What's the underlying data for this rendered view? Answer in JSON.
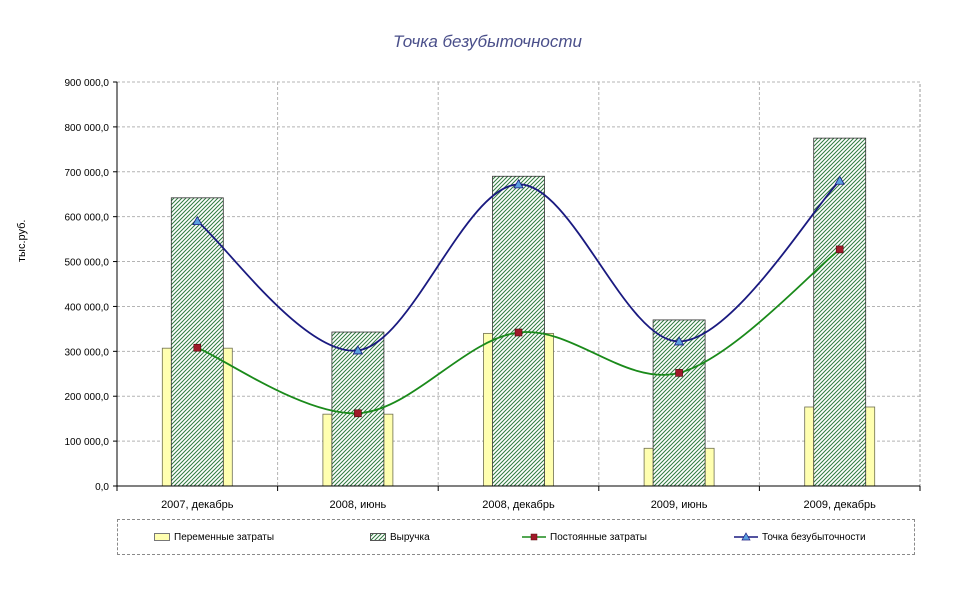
{
  "chart_data": {
    "type": "bar",
    "title": "Точка безубыточности",
    "xlabel": "",
    "ylabel": "тыс.руб.",
    "ylim": [
      0,
      900000
    ],
    "yticks": [
      "0,0",
      "100 000,0",
      "200 000,0",
      "300 000,0",
      "400 000,0",
      "500 000,0",
      "600 000,0",
      "700 000,0",
      "800 000,0",
      "900 000,0"
    ],
    "grid": true,
    "legend_position": "bottom",
    "categories": [
      "2007, декабрь",
      "2008, июнь",
      "2008, декабрь",
      "2009, июнь",
      "2009, декабрь"
    ],
    "series": [
      {
        "name": "Переменные затраты",
        "kind": "bar",
        "color": "#ffffb0",
        "values": [
          307000,
          160000,
          340000,
          84000,
          176000
        ]
      },
      {
        "name": "Выручка",
        "kind": "bar-hatched",
        "color": "#2f7a3f",
        "values": [
          642000,
          343000,
          690000,
          370000,
          775000
        ]
      },
      {
        "name": "Постоянные затраты",
        "kind": "line",
        "color": "#1a8a1a",
        "marker": "square",
        "marker_color": "#a01a2a",
        "values": [
          308000,
          162000,
          342000,
          252000,
          527000
        ]
      },
      {
        "name": "Точка безубыточности",
        "kind": "line",
        "color": "#1a1a80",
        "marker": "triangle",
        "marker_color": "#5aa0e0",
        "values": [
          590000,
          302000,
          672000,
          322000,
          680000
        ]
      }
    ]
  }
}
